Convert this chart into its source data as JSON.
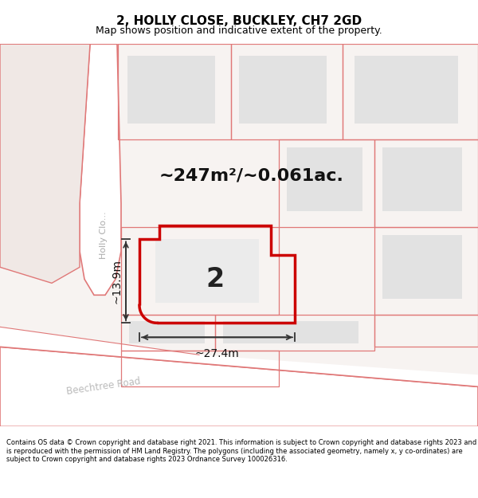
{
  "title": "2, HOLLY CLOSE, BUCKLEY, CH7 2GD",
  "subtitle": "Map shows position and indicative extent of the property.",
  "area_text": "~247m²/~0.061ac.",
  "width_text": "~27.4m",
  "height_text": "~13.9m",
  "property_number": "2",
  "copyright_text": "Contains OS data © Crown copyright and database right 2021. This information is subject to Crown copyright and database rights 2023 and is reproduced with the permission of HM Land Registry. The polygons (including the associated geometry, namely x, y co-ordinates) are subject to Crown copyright and database rights 2023 Ordnance Survey 100026316.",
  "map_bg": "#f7f3f1",
  "road_fill": "#ffffff",
  "building_fill": "#e2e2e2",
  "property_fill": "#ebebeb",
  "property_outline_color": "#cc0000",
  "dim_line_color": "#333333",
  "road_outline_color": "#e07878",
  "title_fontsize": 11,
  "subtitle_fontsize": 9
}
